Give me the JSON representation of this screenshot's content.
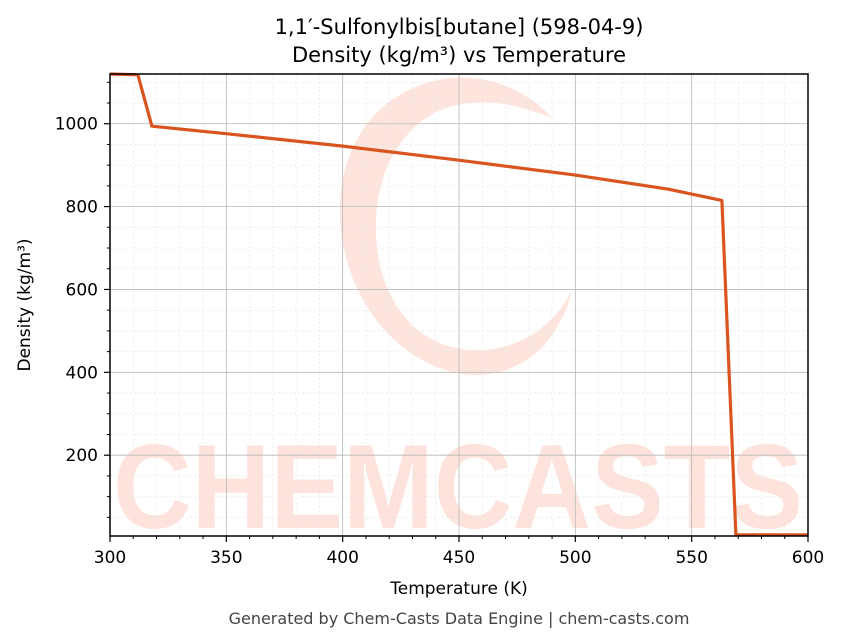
{
  "chart_data": {
    "type": "line",
    "title": "1,1′-Sulfonylbis[butane] (598-04-9)",
    "subtitle": "Density (kg/m³) vs Temperature",
    "xlabel": "Temperature (K)",
    "ylabel": "Density (kg/m³)",
    "xlim": [
      300,
      600
    ],
    "ylim": [
      5,
      1120
    ],
    "x_ticks": [
      300,
      350,
      400,
      450,
      500,
      550,
      600
    ],
    "y_ticks": [
      200,
      400,
      600,
      800,
      1000
    ],
    "grid": true,
    "line_color": "#d9541e",
    "series": [
      {
        "x": [
          300,
          312,
          318,
          350,
          400,
          450,
          500,
          540,
          563,
          569,
          600
        ],
        "y": [
          1120,
          1118,
          994,
          976,
          946,
          912,
          876,
          842,
          815,
          8,
          8
        ]
      }
    ]
  },
  "watermark": "CHEMCASTS",
  "footer": "Generated by Chem-Casts Data Engine | chem-casts.com"
}
